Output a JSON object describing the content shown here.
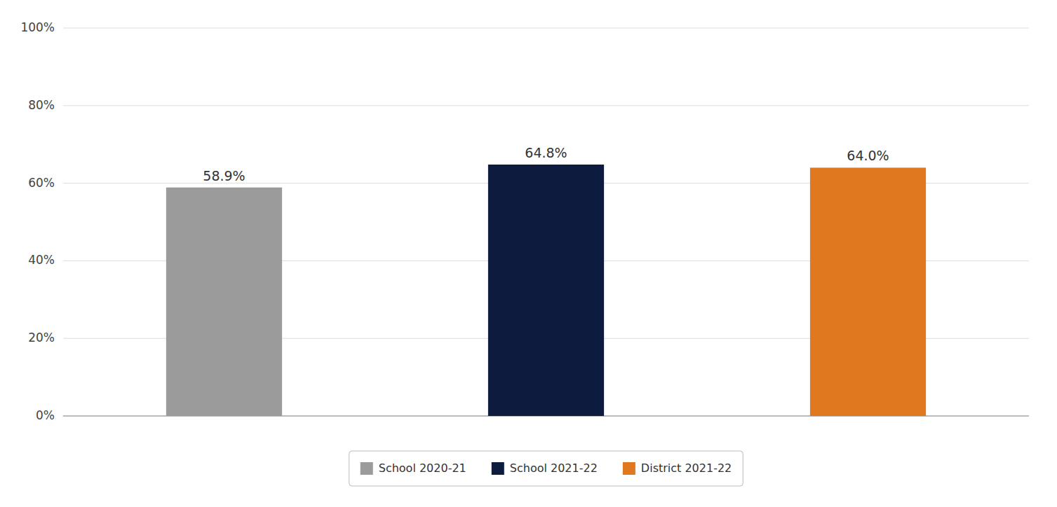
{
  "chart_data": {
    "type": "bar",
    "categories": [
      "School 2020-21",
      "School 2021-22",
      "District 2021-22"
    ],
    "values": [
      58.9,
      64.8,
      64.0
    ],
    "value_labels": [
      "58.9%",
      "64.8%",
      "64.0%"
    ],
    "colors": [
      "#9b9b9b",
      "#0d1b3e",
      "#e07820"
    ],
    "ylim": [
      0,
      100
    ],
    "yticks": [
      {
        "value": 0,
        "label": "0%"
      },
      {
        "value": 20,
        "label": "20%"
      },
      {
        "value": 40,
        "label": "40%"
      },
      {
        "value": 60,
        "label": "60%"
      },
      {
        "value": 80,
        "label": "80%"
      },
      {
        "value": 100,
        "label": "100%"
      }
    ],
    "grid": true,
    "data_labels": true,
    "legend": "bottom",
    "tick_labels": "y"
  }
}
